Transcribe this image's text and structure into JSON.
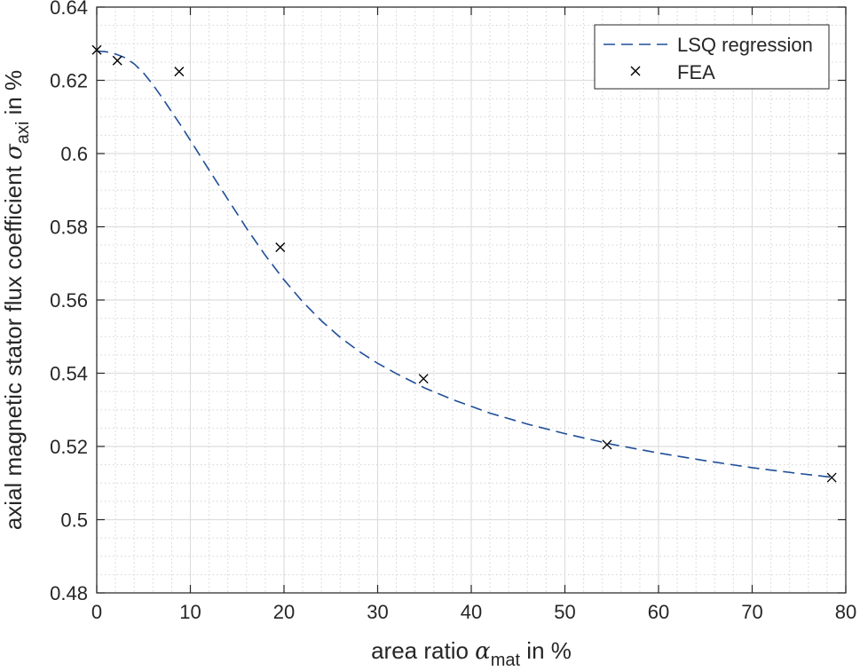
{
  "chart_data": {
    "type": "line",
    "xlabel": {
      "prefix": "area ratio ",
      "symbol": "α",
      "subscript": "mat",
      "suffix": " in %"
    },
    "ylabel": {
      "prefix": "axial magnetic stator flux coefficient ",
      "symbol": "σ",
      "subscript": "axi",
      "suffix": " in %"
    },
    "xlim": [
      0,
      80
    ],
    "ylim": [
      0.48,
      0.64
    ],
    "xticks": [
      0,
      10,
      20,
      30,
      40,
      50,
      60,
      70,
      80
    ],
    "xtick_labels": [
      "0",
      "10",
      "20",
      "30",
      "40",
      "50",
      "60",
      "70",
      "80"
    ],
    "yticks": [
      0.48,
      0.5,
      0.52,
      0.54,
      0.56,
      0.58,
      0.6,
      0.62,
      0.64
    ],
    "ytick_labels": [
      "0.48",
      "0.5",
      "0.52",
      "0.54",
      "0.56",
      "0.58",
      "0.6",
      "0.62",
      "0.64"
    ],
    "grid": true,
    "minor_grid": true,
    "legend_position": "top-right",
    "series": [
      {
        "name": "LSQ regression",
        "style": "dashed-line",
        "color": "#1f4e99",
        "x": [
          0,
          1,
          2,
          3,
          4,
          5,
          6,
          7,
          8,
          9,
          10,
          12,
          14,
          16,
          18,
          20,
          22,
          24,
          26,
          28,
          30,
          32,
          35,
          38,
          42,
          46,
          50,
          55,
          60,
          65,
          70,
          75,
          78.5
        ],
        "y": [
          0.628,
          0.6278,
          0.6272,
          0.6262,
          0.6245,
          0.622,
          0.6188,
          0.6152,
          0.6114,
          0.6076,
          0.6036,
          0.5955,
          0.5875,
          0.5796,
          0.5722,
          0.5655,
          0.5595,
          0.5543,
          0.5498,
          0.546,
          0.5427,
          0.5399,
          0.536,
          0.5328,
          0.5291,
          0.5261,
          0.5235,
          0.5206,
          0.5182,
          0.5161,
          0.5142,
          0.5126,
          0.5116
        ]
      },
      {
        "name": "FEA",
        "style": "x-markers",
        "color": "#000000",
        "x": [
          0,
          2.2,
          8.8,
          19.6,
          34.9,
          54.5,
          78.5
        ],
        "y": [
          0.6283,
          0.6254,
          0.6224,
          0.5744,
          0.5385,
          0.5205,
          0.5115
        ]
      }
    ]
  }
}
